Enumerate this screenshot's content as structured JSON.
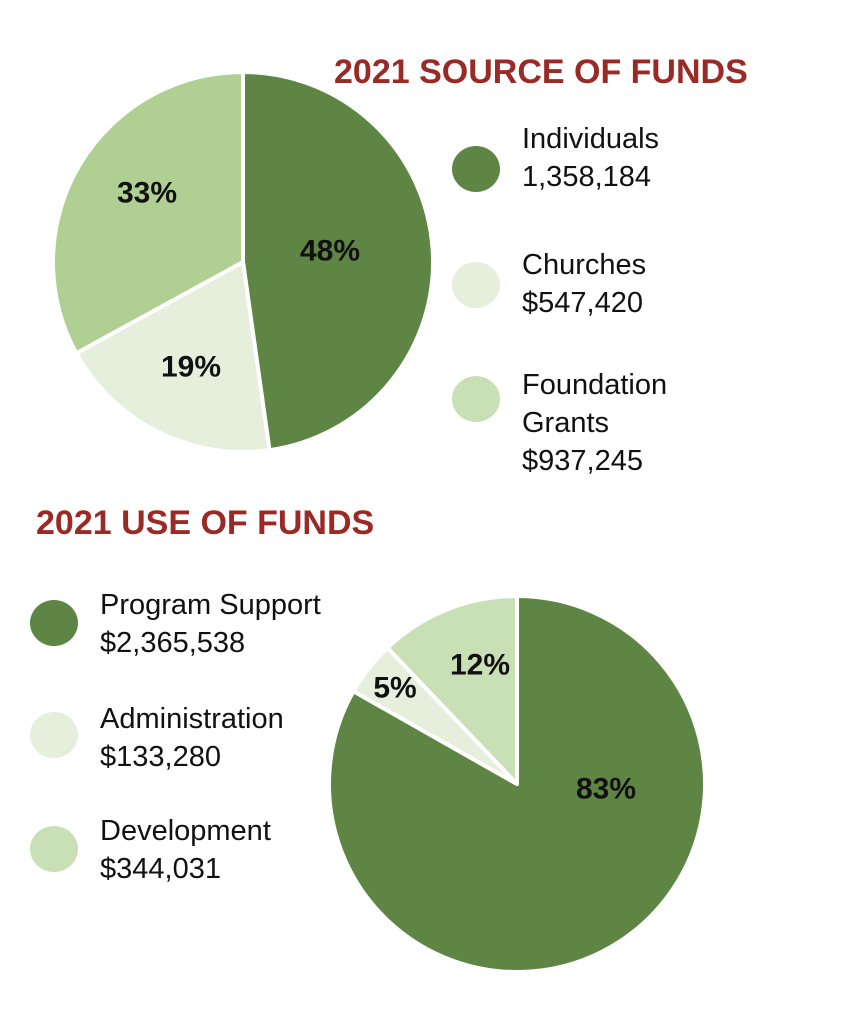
{
  "colors": {
    "title": "#9a2a26",
    "dark_green": "#5e8543",
    "pale_green": "#e5efdc",
    "light_green": "#b0cf93",
    "light_green_swatch": "#c9dfb6",
    "slice_border": "#ffffff"
  },
  "chart_data": [
    {
      "type": "pie",
      "title": "2021 SOURCE OF FUNDS",
      "slices": [
        {
          "key": "individuals",
          "label_lines": [
            "Individuals",
            "1,358,184"
          ],
          "value": 1358184,
          "percent_label": "48%",
          "color": "#5e8543",
          "swatch": "#5e8543"
        },
        {
          "key": "churches",
          "label_lines": [
            "Churches",
            "$547,420"
          ],
          "value": 547420,
          "percent_label": "19%",
          "color": "#e5efdc",
          "swatch": "#e5efdc"
        },
        {
          "key": "foundation-grants",
          "label_lines": [
            "Foundation",
            "Grants",
            "$937,245"
          ],
          "value": 937245,
          "percent_label": "33%",
          "color": "#b0cf93",
          "swatch": "#c9dfb6"
        }
      ]
    },
    {
      "type": "pie",
      "title": "2021 USE OF FUNDS",
      "slices": [
        {
          "key": "program-support",
          "label_lines": [
            "Program Support",
            "$2,365,538"
          ],
          "value": 2365538,
          "percent_label": "83%",
          "color": "#5e8543",
          "swatch": "#5e8543"
        },
        {
          "key": "administration",
          "label_lines": [
            "Administration",
            "$133,280"
          ],
          "value": 133280,
          "percent_label": "5%",
          "color": "#e5efdc",
          "swatch": "#e5efdc"
        },
        {
          "key": "development",
          "label_lines": [
            "Development",
            "$344,031"
          ],
          "value": 344031,
          "percent_label": "12%",
          "color": "#c9dfb6",
          "swatch": "#c9dfb6"
        }
      ]
    }
  ]
}
